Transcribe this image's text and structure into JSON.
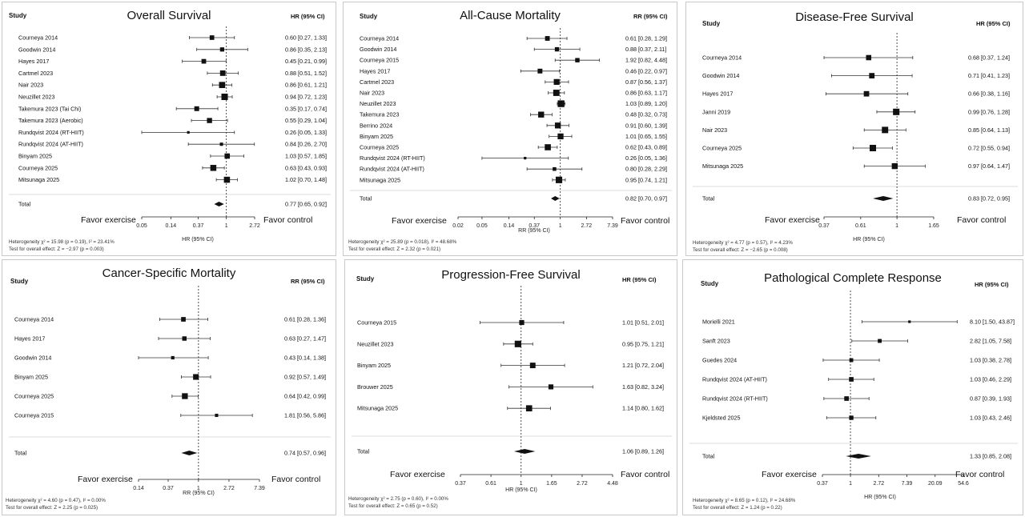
{
  "chart_data": [
    {
      "type": "forest",
      "title": "Overall Survival",
      "study_header": "Study",
      "effect_header": "HR (95% CI)",
      "xlabel": "HR (95% CI)",
      "ticks": [
        "0.05",
        "0.14",
        "0.37",
        "1",
        "2.72"
      ],
      "tick_values": [
        0.05,
        0.14,
        0.37,
        1,
        2.72
      ],
      "xlim": [
        0.05,
        2.72
      ],
      "favor_left": "Favor exercise",
      "favor_right": "Favor control",
      "rows": [
        {
          "study": "Courneya 2014",
          "est": 0.6,
          "lo": 0.27,
          "hi": 1.33,
          "label": "0.60 [0.27, 1.33]"
        },
        {
          "study": "Goodwin 2014",
          "est": 0.86,
          "lo": 0.35,
          "hi": 2.13,
          "label": "0.86 [0.35, 2.13]"
        },
        {
          "study": "Hayes 2017",
          "est": 0.45,
          "lo": 0.21,
          "hi": 0.99,
          "label": "0.45 [0.21, 0.99]"
        },
        {
          "study": "Cartmel 2023",
          "est": 0.88,
          "lo": 0.51,
          "hi": 1.52,
          "label": "0.88 [0.51, 1.52]"
        },
        {
          "study": "Nair 2023",
          "est": 0.86,
          "lo": 0.61,
          "hi": 1.21,
          "label": "0.86 [0.61, 1.21]"
        },
        {
          "study": "Neuzillet 2023",
          "est": 0.94,
          "lo": 0.72,
          "hi": 1.23,
          "label": "0.94 [0.72, 1.23]"
        },
        {
          "study": "Takemura 2023 (Tai Chi)",
          "est": 0.35,
          "lo": 0.17,
          "hi": 0.74,
          "label": "0.35 [0.17, 0.74]"
        },
        {
          "study": "Takemura 2023 (Aerobic)",
          "est": 0.55,
          "lo": 0.29,
          "hi": 1.04,
          "label": "0.55 [0.29, 1.04]"
        },
        {
          "study": "Rundqvist 2024 (RT-HIIT)",
          "est": 0.26,
          "lo": 0.05,
          "hi": 1.33,
          "label": "0.26 [0.05, 1.33]"
        },
        {
          "study": "Rundqvist 2024 (AT-HIIT)",
          "est": 0.84,
          "lo": 0.26,
          "hi": 2.7,
          "label": "0.84 [0.26, 2.70]"
        },
        {
          "study": "Binyam 2025",
          "est": 1.03,
          "lo": 0.57,
          "hi": 1.85,
          "label": "1.03 [0.57, 1.85]"
        },
        {
          "study": "Courneya 2025",
          "est": 0.63,
          "lo": 0.43,
          "hi": 0.93,
          "label": "0.63 [0.43, 0.93]"
        },
        {
          "study": "Mitsunaga 2025",
          "est": 1.02,
          "lo": 0.7,
          "hi": 1.48,
          "label": "1.02 [0.70, 1.48]"
        }
      ],
      "total": {
        "study": "Total",
        "est": 0.77,
        "lo": 0.65,
        "hi": 0.92,
        "label": "0.77 [0.65, 0.92]"
      },
      "heterogeneity": "Heterogeneity χ² = 15.98 (p = 0.19), I² = 23.41%",
      "overall_effect": "Test for overall effect: Z = −2.97 (p = 0.003)"
    },
    {
      "type": "forest",
      "title": "All-Cause Mortality",
      "study_header": "Study",
      "effect_header": "RR (95% CI)",
      "xlabel": "RR (95% CI)",
      "ticks": [
        "0.02",
        "0.05",
        "0.14",
        "0.37",
        "1",
        "2.72",
        "7.39"
      ],
      "tick_values": [
        0.02,
        0.05,
        0.14,
        0.37,
        1,
        2.72,
        7.39
      ],
      "xlim": [
        0.02,
        7.39
      ],
      "favor_left": "Favor exercise",
      "favor_right": "Favor control",
      "rows": [
        {
          "study": "Courneya 2014",
          "est": 0.61,
          "lo": 0.28,
          "hi": 1.29,
          "label": "0.61 [0.28, 1.29]"
        },
        {
          "study": "Goodwin 2014",
          "est": 0.88,
          "lo": 0.37,
          "hi": 2.11,
          "label": "0.88 [0.37, 2.11]"
        },
        {
          "study": "Courneya 2015",
          "est": 1.92,
          "lo": 0.82,
          "hi": 4.48,
          "label": "1.92 [0.82, 4.48]"
        },
        {
          "study": "Hayes 2017",
          "est": 0.46,
          "lo": 0.22,
          "hi": 0.97,
          "label": "0.46 [0.22, 0.97]"
        },
        {
          "study": "Cartmel 2023",
          "est": 0.87,
          "lo": 0.56,
          "hi": 1.37,
          "label": "0.87 [0.56, 1.37]"
        },
        {
          "study": "Nair 2023",
          "est": 0.86,
          "lo": 0.63,
          "hi": 1.17,
          "label": "0.86 [0.63, 1.17]"
        },
        {
          "study": "Neuzillet 2023",
          "est": 1.03,
          "lo": 0.89,
          "hi": 1.2,
          "label": "1.03 [0.89, 1.20]"
        },
        {
          "study": "Takemura 2023",
          "est": 0.48,
          "lo": 0.32,
          "hi": 0.73,
          "label": "0.48 [0.32, 0.73]"
        },
        {
          "study": "Berrino 2024",
          "est": 0.91,
          "lo": 0.6,
          "hi": 1.39,
          "label": "0.91 [0.60, 1.39]"
        },
        {
          "study": "Binyam 2025",
          "est": 1.01,
          "lo": 0.65,
          "hi": 1.55,
          "label": "1.01 [0.65, 1.55]"
        },
        {
          "study": "Courneya 2025",
          "est": 0.62,
          "lo": 0.43,
          "hi": 0.89,
          "label": "0.62 [0.43, 0.89]"
        },
        {
          "study": "Rundqvist 2024 (RT-HIIT)",
          "est": 0.26,
          "lo": 0.05,
          "hi": 1.36,
          "label": "0.26 [0.05, 1.36]"
        },
        {
          "study": "Rundqvist 2024 (AT-HIIT)",
          "est": 0.8,
          "lo": 0.28,
          "hi": 2.29,
          "label": "0.80 [0.28, 2.29]"
        },
        {
          "study": "Mitsunaga 2025",
          "est": 0.95,
          "lo": 0.74,
          "hi": 1.21,
          "label": "0.95 [0.74, 1.21]"
        }
      ],
      "total": {
        "study": "Total",
        "est": 0.82,
        "lo": 0.7,
        "hi": 0.97,
        "label": "0.82 [0.70, 0.97]"
      },
      "heterogeneity": "Heterogeneity χ² = 25.89 (p = 0.018), I² = 48.68%",
      "overall_effect": "Test for overall effect: Z = 2.32 (p = 0.021)"
    },
    {
      "type": "forest",
      "title": "Disease-Free Survival",
      "study_header": "Study",
      "effect_header": "HR (95% CI)",
      "xlabel": "HR (95% CI)",
      "ticks": [
        "0.37",
        "0.61",
        "1",
        "1.65"
      ],
      "tick_values": [
        0.37,
        0.61,
        1,
        1.65
      ],
      "xlim": [
        0.37,
        1.65
      ],
      "favor_left": "Favor exercise",
      "favor_right": "Favor control",
      "rows": [
        {
          "study": "Courneya 2014",
          "est": 0.68,
          "lo": 0.37,
          "hi": 1.24,
          "label": "0.68 [0.37, 1.24]"
        },
        {
          "study": "Goodwin 2014",
          "est": 0.71,
          "lo": 0.41,
          "hi": 1.23,
          "label": "0.71 [0.41, 1.23]"
        },
        {
          "study": "Hayes 2017",
          "est": 0.66,
          "lo": 0.38,
          "hi": 1.16,
          "label": "0.66 [0.38, 1.16]"
        },
        {
          "study": "Janni 2019",
          "est": 0.99,
          "lo": 0.76,
          "hi": 1.28,
          "label": "0.99 [0.76, 1.28]"
        },
        {
          "study": "Nair 2023",
          "est": 0.85,
          "lo": 0.64,
          "hi": 1.13,
          "label": "0.85 [0.64, 1.13]"
        },
        {
          "study": "Courneya 2025",
          "est": 0.72,
          "lo": 0.55,
          "hi": 0.94,
          "label": "0.72 [0.55, 0.94]"
        },
        {
          "study": "Mitsunaga 2025",
          "est": 0.97,
          "lo": 0.64,
          "hi": 1.47,
          "label": "0.97 [0.64, 1.47]"
        }
      ],
      "total": {
        "study": "Total",
        "est": 0.83,
        "lo": 0.72,
        "hi": 0.95,
        "label": "0.83 [0.72, 0.95]"
      },
      "heterogeneity": "Heterogeneity χ² = 4.77 (p = 0.57), I² = 4.23%",
      "overall_effect": "Test for overall effect: Z = −2.65 (p = 0.008)"
    },
    {
      "type": "forest",
      "title": "Cancer-Specific Mortality",
      "study_header": "Study",
      "effect_header": "RR (95% CI)",
      "xlabel": "RR (95% CI)",
      "ticks": [
        "0.14",
        "0.37",
        "1",
        "2.72",
        "7.39"
      ],
      "tick_values": [
        0.14,
        0.37,
        1,
        2.72,
        7.39
      ],
      "xlim": [
        0.14,
        7.39
      ],
      "favor_left": "Favor exercise",
      "favor_right": "Favor control",
      "rows": [
        {
          "study": "Courneya 2014",
          "est": 0.61,
          "lo": 0.28,
          "hi": 1.36,
          "label": "0.61 [0.28, 1.36]"
        },
        {
          "study": "Hayes 2017",
          "est": 0.63,
          "lo": 0.27,
          "hi": 1.47,
          "label": "0.63 [0.27, 1.47]"
        },
        {
          "study": "Goodwin 2014",
          "est": 0.43,
          "lo": 0.14,
          "hi": 1.38,
          "label": "0.43 [0.14, 1.38]"
        },
        {
          "study": "Binyam 2025",
          "est": 0.92,
          "lo": 0.57,
          "hi": 1.49,
          "label": "0.92 [0.57, 1.49]"
        },
        {
          "study": "Courneya 2025",
          "est": 0.64,
          "lo": 0.42,
          "hi": 0.99,
          "label": "0.64 [0.42, 0.99]"
        },
        {
          "study": "Courneya 2015",
          "est": 1.81,
          "lo": 0.56,
          "hi": 5.86,
          "label": "1.81 [0.56, 5.86]"
        }
      ],
      "total": {
        "study": "Total",
        "est": 0.74,
        "lo": 0.57,
        "hi": 0.96,
        "label": "0.74 [0.57, 0.96]"
      },
      "heterogeneity": "Heterogeneity χ² = 4.60 (p = 0.47), I² = 0.00%",
      "overall_effect": "Test for overall effect: Z = 2.25 (p = 0.025)"
    },
    {
      "type": "forest",
      "title": "Progression-Free Survival",
      "study_header": "Study",
      "effect_header": "HR (95% CI)",
      "xlabel": "HR (95% CI)",
      "ticks": [
        "0.37",
        "0.61",
        "1",
        "1.65",
        "2.72",
        "4.48"
      ],
      "tick_values": [
        0.37,
        0.61,
        1,
        1.65,
        2.72,
        4.48
      ],
      "xlim": [
        0.37,
        4.48
      ],
      "favor_left": "Favor exercise",
      "favor_right": "Favor control",
      "rows": [
        {
          "study": "Courneya 2015",
          "est": 1.01,
          "lo": 0.51,
          "hi": 2.01,
          "label": "1.01 [0.51, 2.01]"
        },
        {
          "study": "Neuzillet 2023",
          "est": 0.95,
          "lo": 0.75,
          "hi": 1.21,
          "label": "0.95 [0.75, 1.21]"
        },
        {
          "study": "Binyam 2025",
          "est": 1.21,
          "lo": 0.72,
          "hi": 2.04,
          "label": "1.21 [0.72, 2.04]"
        },
        {
          "study": "Brouwer 2025",
          "est": 1.63,
          "lo": 0.82,
          "hi": 3.24,
          "label": "1.63 [0.82, 3.24]"
        },
        {
          "study": "Mitsunaga 2025",
          "est": 1.14,
          "lo": 0.8,
          "hi": 1.62,
          "label": "1.14 [0.80, 1.62]"
        }
      ],
      "total": {
        "study": "Total",
        "est": 1.06,
        "lo": 0.89,
        "hi": 1.26,
        "label": "1.06 [0.89, 1.26]"
      },
      "heterogeneity": "Heterogeneity χ² = 2.75 (p = 0.60), I² = 0.00%",
      "overall_effect": "Test for overall effect: Z = 0.65 (p = 0.52)"
    },
    {
      "type": "forest",
      "title": "Pathological Complete Response",
      "study_header": "Study",
      "effect_header": "HR (95% CI)",
      "xlabel": "HR (95% CI)",
      "ticks": [
        "0.37",
        "1",
        "2.72",
        "7.39",
        "20.09",
        "54.6"
      ],
      "tick_values": [
        0.37,
        1,
        2.72,
        7.39,
        20.09,
        54.6
      ],
      "xlim": [
        0.37,
        54.6
      ],
      "favor_left": "Favor exercise",
      "favor_right": "Favor control",
      "rows": [
        {
          "study": "Morielli 2021",
          "est": 8.1,
          "lo": 1.5,
          "hi": 43.87,
          "label": "8.10 [1.50, 43.87]"
        },
        {
          "study": "Sanft 2023",
          "est": 2.82,
          "lo": 1.05,
          "hi": 7.58,
          "label": "2.82 [1.05, 7.58]"
        },
        {
          "study": "Guedes 2024",
          "est": 1.03,
          "lo": 0.38,
          "hi": 2.78,
          "label": "1.03 [0.38, 2.78]"
        },
        {
          "study": "Rundqvist 2024 (AT-HIIT)",
          "est": 1.03,
          "lo": 0.46,
          "hi": 2.29,
          "label": "1.03 [0.46, 2.29]"
        },
        {
          "study": "Rundqvist 2024 (RT-HIIT)",
          "est": 0.87,
          "lo": 0.39,
          "hi": 1.93,
          "label": "0.87 [0.39, 1.93]"
        },
        {
          "study": "Kjeldsted 2025",
          "est": 1.03,
          "lo": 0.43,
          "hi": 2.46,
          "label": "1.03 [0.43, 2.46]"
        }
      ],
      "total": {
        "study": "Total",
        "est": 1.33,
        "lo": 0.85,
        "hi": 2.08,
        "label": "1.33 [0.85, 2.08]"
      },
      "heterogeneity": "Heterogeneity χ² = 8.65 (p = 0.12), I² = 24.68%",
      "overall_effect": "Test for overall effect: Z = 1.24 (p = 0.22)"
    }
  ]
}
